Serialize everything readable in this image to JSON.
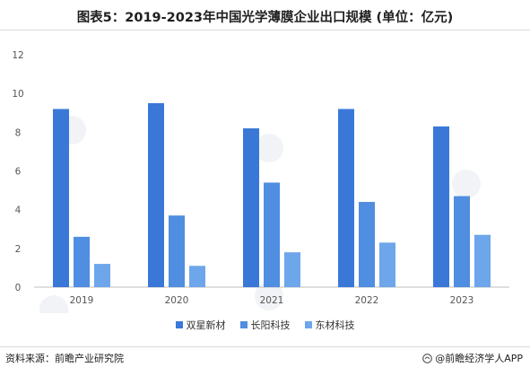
{
  "title": "图表5：2019-2023年中国光学薄膜企业出口规模 (单位：亿元)",
  "source": "资料来源：前瞻产业研究院",
  "brand": "@前瞻经济学人APP",
  "colors": {
    "series1": "#3a78d8",
    "series2": "#4f8ee0",
    "series3": "#6da6ea"
  },
  "chart_data": {
    "type": "bar",
    "categories": [
      "2019",
      "2020",
      "2021",
      "2022",
      "2023"
    ],
    "series": [
      {
        "name": "双星新材",
        "values": [
          9.2,
          9.5,
          8.2,
          9.2,
          8.3
        ]
      },
      {
        "name": "长阳科技",
        "values": [
          2.6,
          3.7,
          5.4,
          4.4,
          4.7
        ]
      },
      {
        "name": "东材科技",
        "values": [
          1.2,
          1.1,
          1.8,
          2.3,
          2.7
        ]
      }
    ],
    "yticks": [
      0,
      2,
      4,
      6,
      8,
      10,
      12
    ],
    "ylim": [
      0,
      12
    ],
    "grid": false,
    "legend": "bottom"
  }
}
